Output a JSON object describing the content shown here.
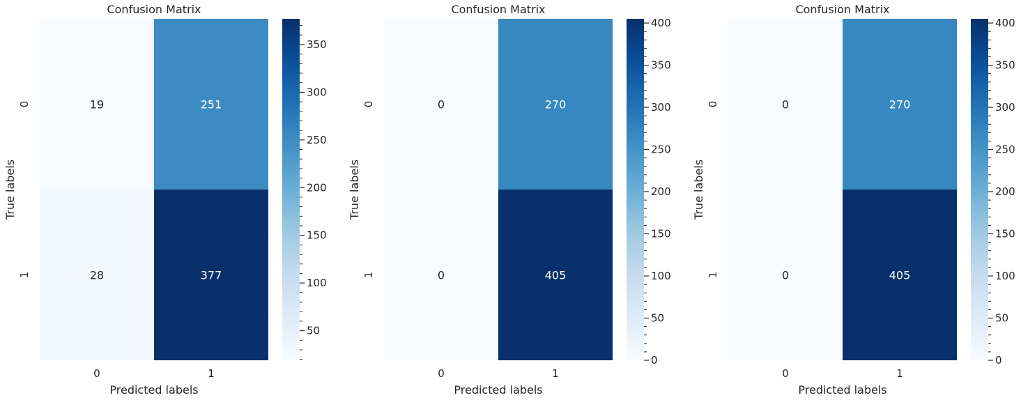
{
  "colormap": "Blues",
  "chart_data": [
    {
      "type": "heatmap",
      "title": "Confusion Matrix",
      "xlabel": "Predicted labels",
      "ylabel": "True labels",
      "x_categories": [
        "0",
        "1"
      ],
      "y_categories": [
        "0",
        "1"
      ],
      "values": [
        [
          19,
          251
        ],
        [
          28,
          377
        ]
      ],
      "colorbar": {
        "vmin": 19,
        "vmax": 377,
        "ticks": [
          50,
          100,
          150,
          200,
          250,
          300,
          350
        ]
      }
    },
    {
      "type": "heatmap",
      "title": "Confusion Matrix",
      "xlabel": "Predicted labels",
      "ylabel": "True labels",
      "x_categories": [
        "0",
        "1"
      ],
      "y_categories": [
        "0",
        "1"
      ],
      "values": [
        [
          0,
          270
        ],
        [
          0,
          405
        ]
      ],
      "colorbar": {
        "vmin": 0,
        "vmax": 405,
        "ticks": [
          0,
          50,
          100,
          150,
          200,
          250,
          300,
          350,
          400
        ]
      }
    },
    {
      "type": "heatmap",
      "title": "Confusion Matrix",
      "xlabel": "Predicted labels",
      "ylabel": "True labels",
      "x_categories": [
        "0",
        "1"
      ],
      "y_categories": [
        "0",
        "1"
      ],
      "values": [
        [
          0,
          270
        ],
        [
          0,
          405
        ]
      ],
      "colorbar": {
        "vmin": 0,
        "vmax": 405,
        "ticks": [
          0,
          50,
          100,
          150,
          200,
          250,
          300,
          350,
          400
        ]
      }
    }
  ]
}
